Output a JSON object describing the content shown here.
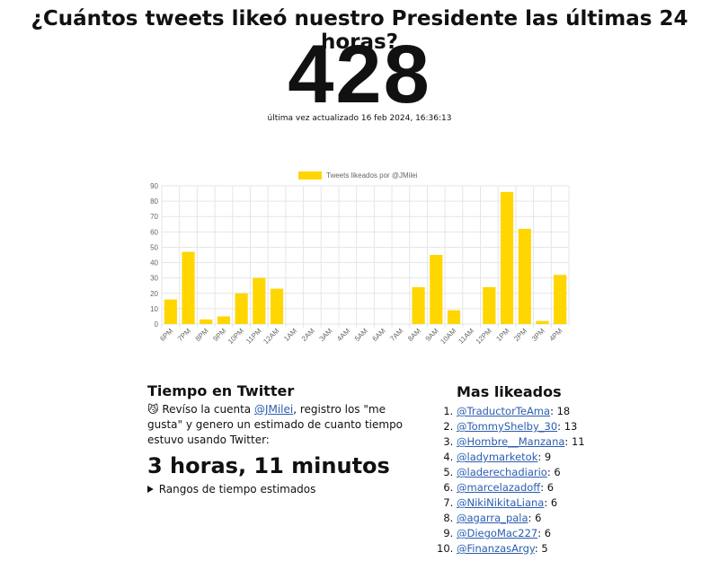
{
  "header": {
    "title": "¿Cuántos tweets likeó nuestro Presidente las últimas 24 horas?",
    "count": 428,
    "updated": "última vez actualizado 16 feb 2024, 16:36:13"
  },
  "chart_data": {
    "type": "bar",
    "legend": "Tweets likeados por @JMilei",
    "color": "#ffd600",
    "categories": [
      "6PM",
      "7PM",
      "8PM",
      "9PM",
      "10PM",
      "11PM",
      "12AM",
      "1AM",
      "2AM",
      "3AM",
      "4AM",
      "5AM",
      "6AM",
      "7AM",
      "8AM",
      "9AM",
      "10AM",
      "11AM",
      "12PM",
      "1PM",
      "2PM",
      "3PM",
      "4PM"
    ],
    "values": [
      16,
      47,
      3,
      5,
      20,
      30,
      23,
      0,
      0,
      0,
      0,
      0,
      0,
      0,
      24,
      45,
      9,
      0,
      24,
      86,
      62,
      2,
      32
    ],
    "ylim": [
      0,
      90
    ],
    "yticks": [
      0,
      10,
      20,
      30,
      40,
      50,
      60,
      70,
      80,
      90
    ],
    "grid": true,
    "legend_position": "top"
  },
  "time": {
    "heading": "Tiempo en Twitter",
    "icon": "😼",
    "text_before": "Revíso la cuenta ",
    "link": "@JMilei",
    "text_after": ", registro los \"me gusta\" y genero un estimado de cuanto tiempo estuvo usando Twitter:",
    "estimate": "3 horas, 11 minutos",
    "details": "Rangos de tiempo estimados"
  },
  "top": {
    "heading": "Mas likeados",
    "items": [
      {
        "user": "@TraductorTeAma",
        "count": 18
      },
      {
        "user": "@TommyShelby_30",
        "count": 13
      },
      {
        "user": "@Hombre__Manzana",
        "count": 11
      },
      {
        "user": "@ladymarketok",
        "count": 9
      },
      {
        "user": "@laderechadiario",
        "count": 6
      },
      {
        "user": "@marcelazadoff",
        "count": 6
      },
      {
        "user": "@NikiNikitaLiana",
        "count": 6
      },
      {
        "user": "@agarra_pala",
        "count": 6
      },
      {
        "user": "@DiegoMac227",
        "count": 6
      },
      {
        "user": "@FinanzasArgy",
        "count": 5
      }
    ]
  }
}
